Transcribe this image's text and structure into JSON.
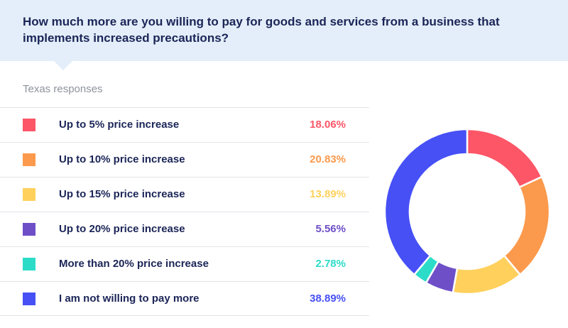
{
  "question": "How much more are you willing to pay for goods and services from a business that implements increased precautions?",
  "subtitle": "Texas responses",
  "chart_data": {
    "type": "pie",
    "title": "How much more are you willing to pay for goods and services from a business that implements increased precautions?",
    "subtitle": "Texas responses",
    "categories": [
      "Up to 5% price increase",
      "Up to 10% price increase",
      "Up to 15% price increase",
      "Up to 20% price increase",
      "More than 20% price increase",
      "I am not willing to pay more"
    ],
    "values": [
      18.06,
      20.83,
      13.89,
      5.56,
      2.78,
      38.89
    ],
    "value_labels": [
      "18.06%",
      "20.83%",
      "13.89%",
      "5.56%",
      "2.78%",
      "38.89%"
    ],
    "colors": [
      "#fc5667",
      "#fb9a4d",
      "#ffd15c",
      "#6e4fc8",
      "#2cdcc9",
      "#4650f5"
    ],
    "legend_position": "left",
    "donut": true
  }
}
